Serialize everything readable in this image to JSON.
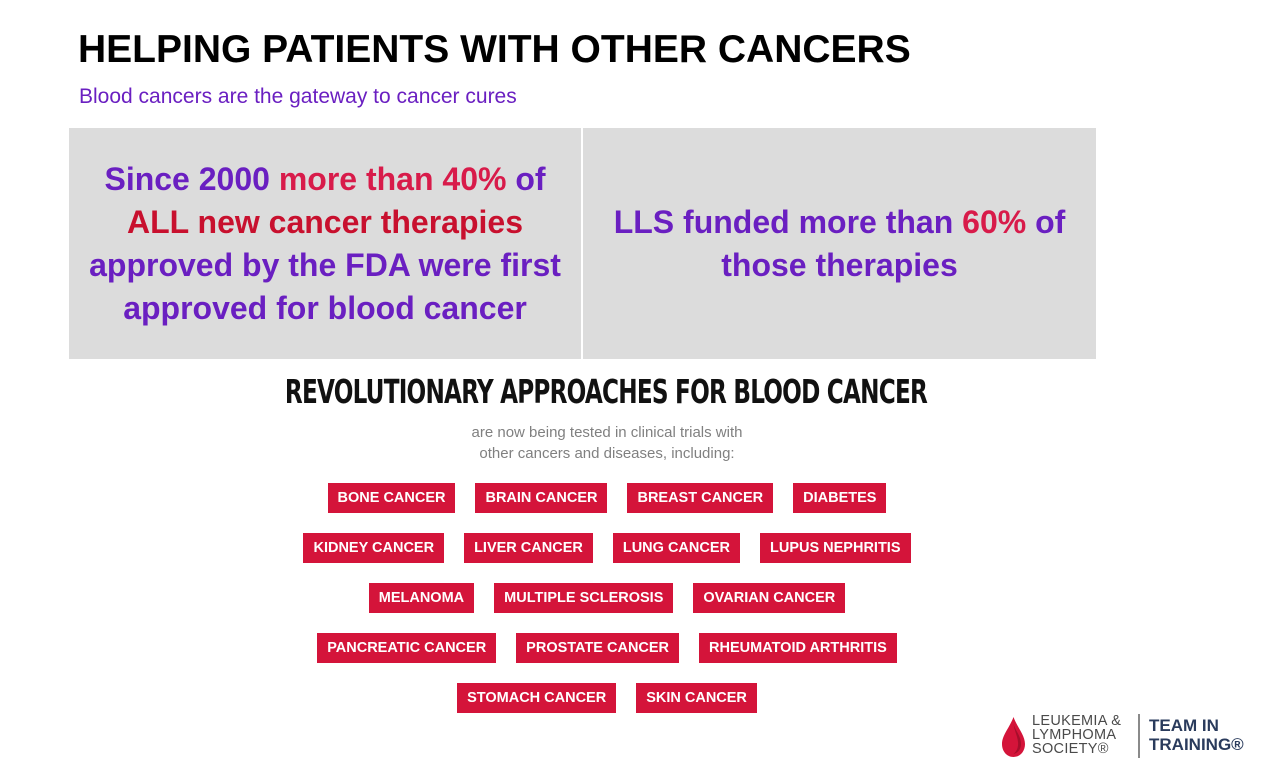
{
  "header": {
    "title": "HELPING PATIENTS WITH OTHER CANCERS",
    "subtitle": "Blood cancers are the gateway to cancer cures"
  },
  "stats": {
    "left": {
      "part1": "Since 2000 ",
      "part2": "more than 40%",
      "part3": " of ",
      "part4": "ALL new cancer therapies",
      "part5": " approved by the FDA were first approved for blood cancer"
    },
    "right": {
      "part1": "LLS funded more than ",
      "part2": "60%",
      "part3": " of those therapies"
    }
  },
  "section": {
    "headline": "REVOLUTIONARY APPROACHES FOR BLOOD CANCER",
    "note_line1": "are now being tested in clinical trials with",
    "note_line2": "other cancers and diseases, including:"
  },
  "tags": {
    "rows": [
      [
        "BONE CANCER",
        "BRAIN CANCER",
        "BREAST CANCER",
        "DIABETES"
      ],
      [
        "KIDNEY CANCER",
        "LIVER CANCER",
        "LUNG CANCER",
        "LUPUS NEPHRITIS"
      ],
      [
        "MELANOMA",
        "MULTIPLE SCLEROSIS",
        "OVARIAN CANCER"
      ],
      [
        "PANCREATIC CANCER",
        "PROSTATE CANCER",
        "RHEUMATOID ARTHRITIS"
      ],
      [
        "STOMACH CANCER",
        "SKIN CANCER"
      ]
    ]
  },
  "logo": {
    "org_line1": "LEUKEMIA &",
    "org_line2": "LYMPHOMA",
    "org_line3": "SOCIETY®",
    "team_line1": "TEAM IN",
    "team_line2": "TRAINING®"
  },
  "colors": {
    "purple": "#6a1fc1",
    "red": "#c8102e",
    "tag_red": "#d4143a",
    "panel_gray": "#dcdcdc",
    "logo_navy": "#2a3b5c"
  }
}
